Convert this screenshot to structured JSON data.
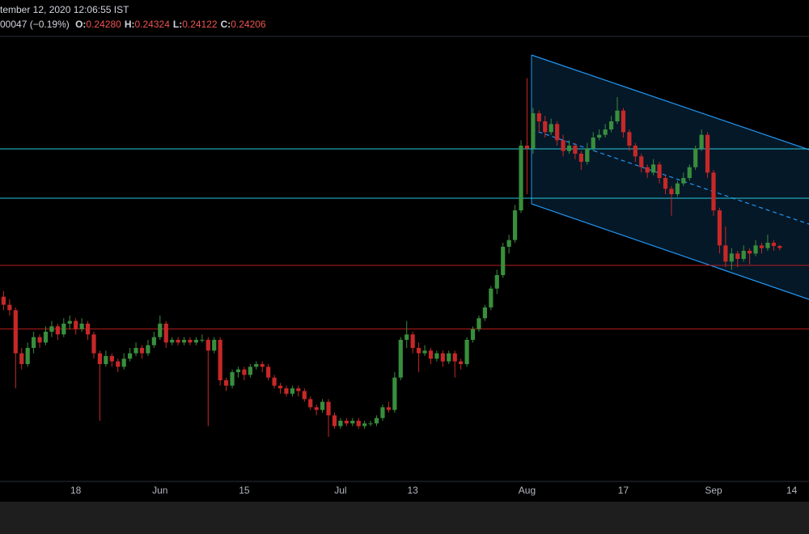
{
  "header": {
    "datetime": "tember 12, 2020 12:06:55 IST",
    "change": "00047 (−0.19%)",
    "ohlc": [
      {
        "label": "O:",
        "value": "0.24280"
      },
      {
        "label": "H:",
        "value": "0.24324"
      },
      {
        "label": "L:",
        "value": "0.24122"
      },
      {
        "label": "C:",
        "value": "0.24206"
      }
    ]
  },
  "chart_data": {
    "type": "candlestick",
    "up_color": "#388e3c",
    "down_color": "#c62828",
    "xlim": [
      "2020-05-05",
      "2020-09-17"
    ],
    "ylim": [
      0.1555,
      0.319
    ],
    "xticks": [
      {
        "value": "2020-05-18",
        "label": "18"
      },
      {
        "value": "2020-06-01",
        "label": "Jun"
      },
      {
        "value": "2020-06-15",
        "label": "15"
      },
      {
        "value": "2020-07-01",
        "label": "Jul"
      },
      {
        "value": "2020-07-13",
        "label": "13"
      },
      {
        "value": "2020-08-01",
        "label": "Aug"
      },
      {
        "value": "2020-08-17",
        "label": "17"
      },
      {
        "value": "2020-09-01",
        "label": "Sep"
      },
      {
        "value": "2020-09-14",
        "label": "14"
      }
    ],
    "levels": [
      {
        "value": 0.2788,
        "color": "#26c6da"
      },
      {
        "value": 0.2605,
        "color": "#26c6da"
      },
      {
        "value": 0.2356,
        "color": "#b71c1c"
      },
      {
        "value": 0.212,
        "color": "#b71c1c"
      }
    ],
    "x": [
      "2020-05-06",
      "2020-05-07",
      "2020-05-08",
      "2020-05-09",
      "2020-05-10",
      "2020-05-11",
      "2020-05-12",
      "2020-05-13",
      "2020-05-14",
      "2020-05-15",
      "2020-05-16",
      "2020-05-17",
      "2020-05-18",
      "2020-05-19",
      "2020-05-20",
      "2020-05-21",
      "2020-05-22",
      "2020-05-23",
      "2020-05-24",
      "2020-05-25",
      "2020-05-26",
      "2020-05-27",
      "2020-05-28",
      "2020-05-29",
      "2020-05-30",
      "2020-05-31",
      "2020-06-01",
      "2020-06-02",
      "2020-06-03",
      "2020-06-04",
      "2020-06-05",
      "2020-06-06",
      "2020-06-07",
      "2020-06-08",
      "2020-06-09",
      "2020-06-10",
      "2020-06-11",
      "2020-06-12",
      "2020-06-13",
      "2020-06-14",
      "2020-06-15",
      "2020-06-16",
      "2020-06-17",
      "2020-06-18",
      "2020-06-19",
      "2020-06-20",
      "2020-06-21",
      "2020-06-22",
      "2020-06-23",
      "2020-06-24",
      "2020-06-25",
      "2020-06-26",
      "2020-06-27",
      "2020-06-28",
      "2020-06-29",
      "2020-06-30",
      "2020-07-01",
      "2020-07-02",
      "2020-07-03",
      "2020-07-04",
      "2020-07-05",
      "2020-07-06",
      "2020-07-07",
      "2020-07-08",
      "2020-07-09",
      "2020-07-10",
      "2020-07-11",
      "2020-07-12",
      "2020-07-13",
      "2020-07-14",
      "2020-07-15",
      "2020-07-16",
      "2020-07-17",
      "2020-07-18",
      "2020-07-19",
      "2020-07-20",
      "2020-07-21",
      "2020-07-22",
      "2020-07-23",
      "2020-07-24",
      "2020-07-25",
      "2020-07-26",
      "2020-07-27",
      "2020-07-28",
      "2020-07-29",
      "2020-07-30",
      "2020-07-31",
      "2020-08-01",
      "2020-08-02",
      "2020-08-03",
      "2020-08-04",
      "2020-08-05",
      "2020-08-06",
      "2020-08-07",
      "2020-08-08",
      "2020-08-09",
      "2020-08-10",
      "2020-08-11",
      "2020-08-12",
      "2020-08-13",
      "2020-08-14",
      "2020-08-15",
      "2020-08-16",
      "2020-08-17",
      "2020-08-18",
      "2020-08-19",
      "2020-08-20",
      "2020-08-21",
      "2020-08-22",
      "2020-08-23",
      "2020-08-24",
      "2020-08-25",
      "2020-08-26",
      "2020-08-27",
      "2020-08-28",
      "2020-08-29",
      "2020-08-30",
      "2020-08-31",
      "2020-09-01",
      "2020-09-02",
      "2020-09-03",
      "2020-09-04",
      "2020-09-05",
      "2020-09-06",
      "2020-09-07",
      "2020-09-08",
      "2020-09-09",
      "2020-09-10",
      "2020-09-11",
      "2020-09-12"
    ],
    "candles": [
      [
        0.224,
        0.226,
        0.219,
        0.221
      ],
      [
        0.221,
        0.223,
        0.217,
        0.219
      ],
      [
        0.219,
        0.22,
        0.19,
        0.203
      ],
      [
        0.203,
        0.205,
        0.197,
        0.199
      ],
      [
        0.199,
        0.207,
        0.198,
        0.205
      ],
      [
        0.205,
        0.211,
        0.203,
        0.209
      ],
      [
        0.209,
        0.21,
        0.205,
        0.207
      ],
      [
        0.207,
        0.213,
        0.206,
        0.211
      ],
      [
        0.211,
        0.215,
        0.209,
        0.213
      ],
      [
        0.213,
        0.214,
        0.208,
        0.21
      ],
      [
        0.21,
        0.216,
        0.209,
        0.214
      ],
      [
        0.214,
        0.217,
        0.212,
        0.215
      ],
      [
        0.215,
        0.216,
        0.21,
        0.212
      ],
      [
        0.212,
        0.216,
        0.211,
        0.214
      ],
      [
        0.214,
        0.215,
        0.208,
        0.21
      ],
      [
        0.21,
        0.211,
        0.201,
        0.203
      ],
      [
        0.203,
        0.204,
        0.178,
        0.199
      ],
      [
        0.199,
        0.204,
        0.198,
        0.202
      ],
      [
        0.202,
        0.203,
        0.198,
        0.2
      ],
      [
        0.2,
        0.201,
        0.196,
        0.198
      ],
      [
        0.198,
        0.203,
        0.197,
        0.201
      ],
      [
        0.201,
        0.205,
        0.2,
        0.203
      ],
      [
        0.203,
        0.207,
        0.202,
        0.205
      ],
      [
        0.205,
        0.206,
        0.201,
        0.203
      ],
      [
        0.203,
        0.208,
        0.202,
        0.206
      ],
      [
        0.206,
        0.211,
        0.205,
        0.209
      ],
      [
        0.209,
        0.217,
        0.208,
        0.214
      ],
      [
        0.214,
        0.215,
        0.205,
        0.207
      ],
      [
        0.207,
        0.209,
        0.206,
        0.208
      ],
      [
        0.208,
        0.209,
        0.206,
        0.207
      ],
      [
        0.207,
        0.209,
        0.206,
        0.208
      ],
      [
        0.208,
        0.209,
        0.206,
        0.207
      ],
      [
        0.207,
        0.209,
        0.206,
        0.208
      ],
      [
        0.208,
        0.21,
        0.207,
        0.208
      ],
      [
        0.208,
        0.209,
        0.176,
        0.204
      ],
      [
        0.204,
        0.209,
        0.203,
        0.208
      ],
      [
        0.208,
        0.209,
        0.191,
        0.193
      ],
      [
        0.193,
        0.194,
        0.189,
        0.191
      ],
      [
        0.191,
        0.197,
        0.19,
        0.196
      ],
      [
        0.196,
        0.198,
        0.194,
        0.197
      ],
      [
        0.197,
        0.198,
        0.193,
        0.195
      ],
      [
        0.195,
        0.199,
        0.194,
        0.198
      ],
      [
        0.198,
        0.2,
        0.197,
        0.199
      ],
      [
        0.199,
        0.2,
        0.196,
        0.198
      ],
      [
        0.198,
        0.199,
        0.193,
        0.194
      ],
      [
        0.194,
        0.195,
        0.19,
        0.191
      ],
      [
        0.191,
        0.192,
        0.188,
        0.19
      ],
      [
        0.19,
        0.191,
        0.187,
        0.188
      ],
      [
        0.188,
        0.191,
        0.187,
        0.19
      ],
      [
        0.19,
        0.191,
        0.187,
        0.189
      ],
      [
        0.189,
        0.19,
        0.185,
        0.186
      ],
      [
        0.186,
        0.187,
        0.182,
        0.183
      ],
      [
        0.183,
        0.184,
        0.18,
        0.182
      ],
      [
        0.182,
        0.186,
        0.181,
        0.185
      ],
      [
        0.185,
        0.186,
        0.172,
        0.18
      ],
      [
        0.18,
        0.181,
        0.175,
        0.176
      ],
      [
        0.176,
        0.179,
        0.175,
        0.178
      ],
      [
        0.178,
        0.179,
        0.176,
        0.177
      ],
      [
        0.177,
        0.179,
        0.176,
        0.178
      ],
      [
        0.178,
        0.179,
        0.175,
        0.176
      ],
      [
        0.176,
        0.178,
        0.175,
        0.177
      ],
      [
        0.177,
        0.178,
        0.176,
        0.177
      ],
      [
        0.177,
        0.18,
        0.176,
        0.179
      ],
      [
        0.179,
        0.184,
        0.178,
        0.183
      ],
      [
        0.183,
        0.185,
        0.181,
        0.182
      ],
      [
        0.182,
        0.196,
        0.181,
        0.194
      ],
      [
        0.194,
        0.209,
        0.193,
        0.208
      ],
      [
        0.208,
        0.215,
        0.205,
        0.21
      ],
      [
        0.21,
        0.211,
        0.203,
        0.205
      ],
      [
        0.205,
        0.207,
        0.196,
        0.203
      ],
      [
        0.203,
        0.206,
        0.202,
        0.204
      ],
      [
        0.204,
        0.205,
        0.199,
        0.201
      ],
      [
        0.201,
        0.204,
        0.2,
        0.203
      ],
      [
        0.203,
        0.204,
        0.198,
        0.2
      ],
      [
        0.2,
        0.204,
        0.199,
        0.203
      ],
      [
        0.203,
        0.204,
        0.194,
        0.2
      ],
      [
        0.2,
        0.201,
        0.197,
        0.199
      ],
      [
        0.199,
        0.209,
        0.198,
        0.208
      ],
      [
        0.208,
        0.213,
        0.207,
        0.212
      ],
      [
        0.212,
        0.217,
        0.211,
        0.216
      ],
      [
        0.216,
        0.221,
        0.215,
        0.22
      ],
      [
        0.22,
        0.228,
        0.219,
        0.227
      ],
      [
        0.227,
        0.234,
        0.225,
        0.232
      ],
      [
        0.232,
        0.244,
        0.231,
        0.2425
      ],
      [
        0.2425,
        0.247,
        0.24,
        0.245
      ],
      [
        0.245,
        0.258,
        0.244,
        0.256
      ],
      [
        0.256,
        0.282,
        0.255,
        0.28
      ],
      [
        0.28,
        0.305,
        0.262,
        0.279
      ],
      [
        0.279,
        0.294,
        0.277,
        0.292
      ],
      [
        0.292,
        0.293,
        0.285,
        0.289
      ],
      [
        0.289,
        0.291,
        0.283,
        0.285
      ],
      [
        0.285,
        0.29,
        0.284,
        0.288
      ],
      [
        0.288,
        0.289,
        0.28,
        0.282
      ],
      [
        0.282,
        0.284,
        0.276,
        0.278
      ],
      [
        0.278,
        0.282,
        0.277,
        0.28
      ],
      [
        0.28,
        0.281,
        0.275,
        0.277
      ],
      [
        0.277,
        0.278,
        0.271,
        0.274
      ],
      [
        0.274,
        0.281,
        0.273,
        0.279
      ],
      [
        0.279,
        0.285,
        0.278,
        0.283
      ],
      [
        0.283,
        0.286,
        0.282,
        0.284
      ],
      [
        0.284,
        0.288,
        0.283,
        0.286
      ],
      [
        0.286,
        0.291,
        0.285,
        0.289
      ],
      [
        0.289,
        0.298,
        0.288,
        0.293
      ],
      [
        0.293,
        0.294,
        0.283,
        0.285
      ],
      [
        0.285,
        0.286,
        0.278,
        0.28
      ],
      [
        0.28,
        0.281,
        0.274,
        0.276
      ],
      [
        0.276,
        0.277,
        0.27,
        0.272
      ],
      [
        0.272,
        0.273,
        0.268,
        0.27
      ],
      [
        0.27,
        0.275,
        0.269,
        0.273
      ],
      [
        0.273,
        0.274,
        0.266,
        0.268
      ],
      [
        0.268,
        0.269,
        0.262,
        0.264
      ],
      [
        0.264,
        0.265,
        0.254,
        0.262
      ],
      [
        0.262,
        0.267,
        0.261,
        0.266
      ],
      [
        0.266,
        0.27,
        0.265,
        0.268
      ],
      [
        0.268,
        0.273,
        0.267,
        0.272
      ],
      [
        0.272,
        0.28,
        0.271,
        0.279
      ],
      [
        0.279,
        0.286,
        0.278,
        0.284
      ],
      [
        0.284,
        0.285,
        0.268,
        0.27
      ],
      [
        0.27,
        0.271,
        0.254,
        0.256
      ],
      [
        0.256,
        0.257,
        0.24,
        0.243
      ],
      [
        0.243,
        0.25,
        0.235,
        0.237
      ],
      [
        0.237,
        0.242,
        0.234,
        0.24
      ],
      [
        0.24,
        0.241,
        0.235,
        0.238
      ],
      [
        0.238,
        0.243,
        0.237,
        0.241
      ],
      [
        0.241,
        0.242,
        0.236,
        0.24
      ],
      [
        0.24,
        0.245,
        0.239,
        0.243
      ],
      [
        0.243,
        0.244,
        0.24,
        0.242
      ],
      [
        0.242,
        0.247,
        0.241,
        0.244
      ],
      [
        0.244,
        0.245,
        0.241,
        0.2428
      ],
      [
        0.2428,
        0.24324,
        0.24122,
        0.24206
      ]
    ]
  }
}
